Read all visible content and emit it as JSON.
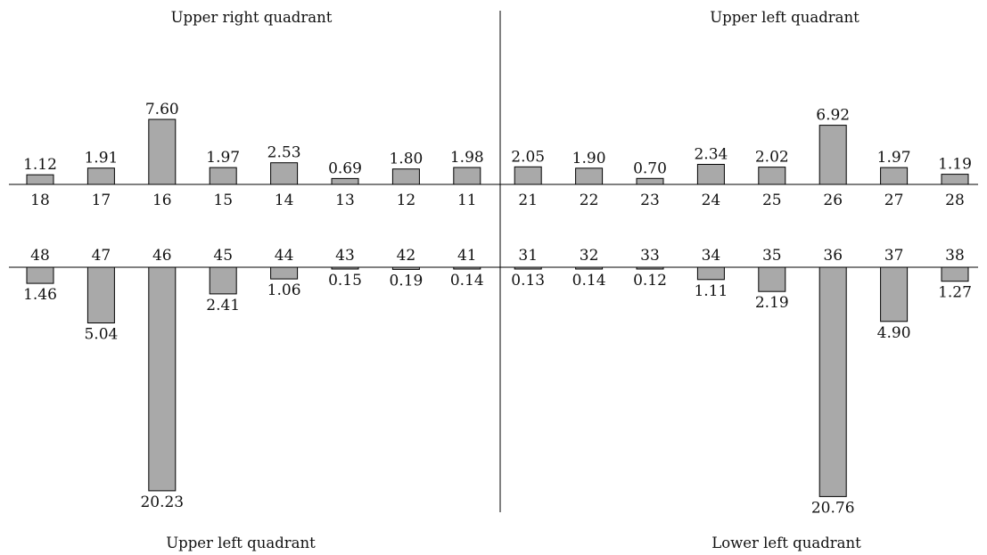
{
  "chart_data": {
    "type": "bar",
    "bar_color": "#a9a9a9",
    "bar_stroke": "#000000",
    "quadrant_titles": {
      "top_left": "Upper right quadrant",
      "top_right": "Upper left quadrant",
      "bottom_left": "Upper left quadrant",
      "bottom_right": "Lower left quadrant"
    },
    "upper_row": {
      "direction": "up",
      "categories": [
        "18",
        "17",
        "16",
        "15",
        "14",
        "13",
        "12",
        "11",
        "21",
        "22",
        "23",
        "24",
        "25",
        "26",
        "27",
        "28"
      ],
      "values": [
        1.12,
        1.91,
        7.6,
        1.97,
        2.53,
        0.69,
        1.8,
        1.98,
        2.05,
        1.9,
        0.7,
        2.34,
        2.02,
        6.92,
        1.97,
        1.19
      ],
      "value_labels": [
        "1.12",
        "1.91",
        "7.60",
        "1.97",
        "2.53",
        "0.69",
        "1.80",
        "1.98",
        "2.05",
        "1.90",
        "0.70",
        "2.34",
        "2.02",
        "6.92",
        "1.97",
        "1.19"
      ]
    },
    "lower_row": {
      "direction": "down",
      "categories": [
        "48",
        "47",
        "46",
        "45",
        "44",
        "43",
        "42",
        "41",
        "31",
        "32",
        "33",
        "34",
        "35",
        "36",
        "37",
        "38"
      ],
      "values": [
        1.46,
        5.04,
        20.23,
        2.41,
        1.06,
        0.15,
        0.19,
        0.14,
        0.13,
        0.14,
        0.12,
        1.11,
        2.19,
        20.76,
        4.9,
        1.27
      ],
      "value_labels": [
        "1.46",
        "5.04",
        "20.23",
        "2.41",
        "1.06",
        "0.15",
        "0.19",
        "0.14",
        "0.13",
        "0.14",
        "0.12",
        "1.11",
        "2.19",
        "20.76",
        "4.90",
        "1.27"
      ]
    },
    "grid": false,
    "legend": "none"
  }
}
